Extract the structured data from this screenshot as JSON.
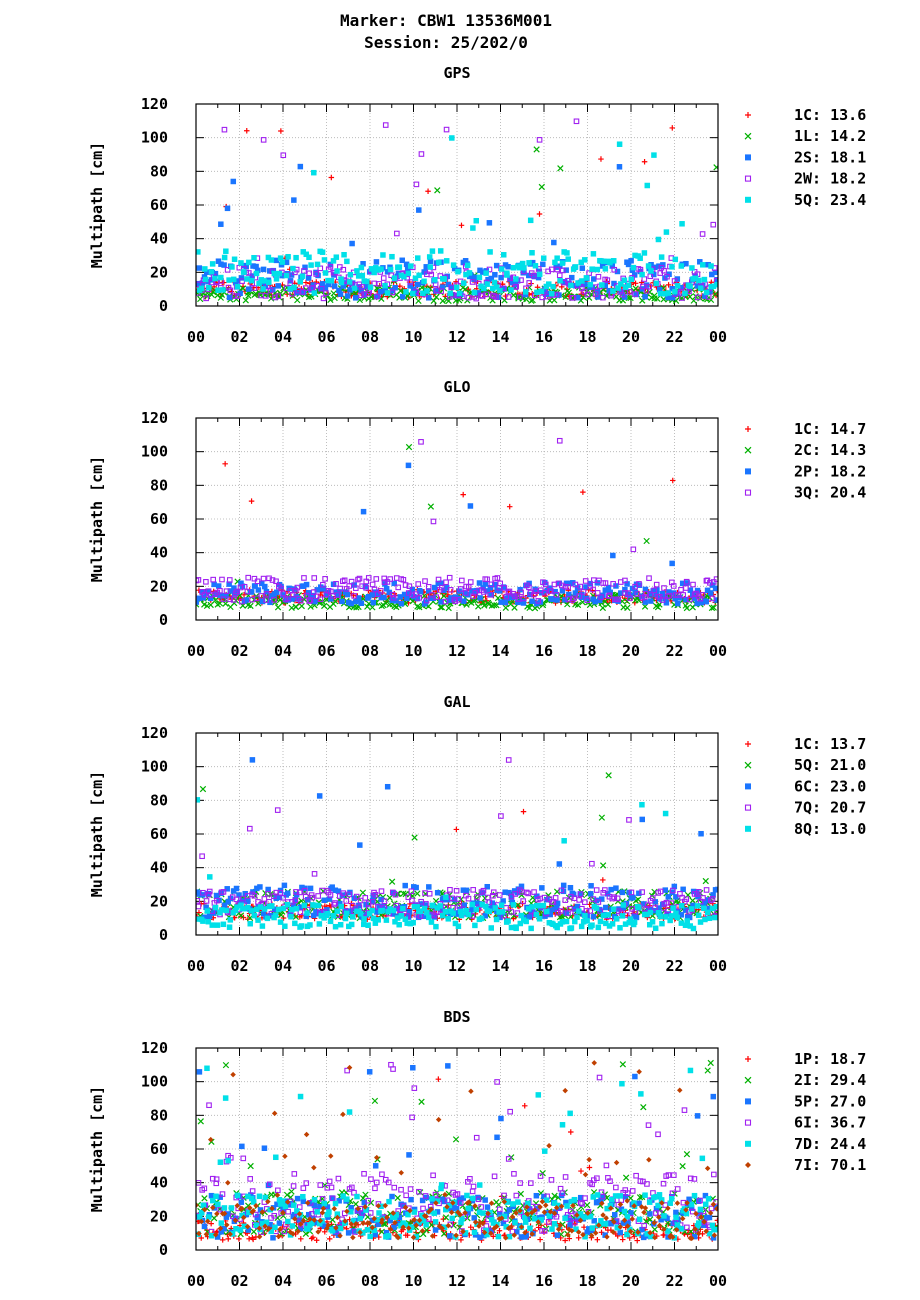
{
  "header": {
    "marker_line": "Marker: CBW1 13536M001",
    "session_line": "Session: 25/202/0"
  },
  "chart_data": [
    {
      "type": "scatter",
      "title": "GPS",
      "ylabel": "Multipath [cm]",
      "xlabel": "",
      "ylim": [
        0,
        120
      ],
      "xlim": [
        0,
        24
      ],
      "y_ticks": [
        "0",
        "20",
        "40",
        "60",
        "80",
        "100",
        "120"
      ],
      "x_ticks": [
        "00",
        "02",
        "04",
        "06",
        "08",
        "10",
        "12",
        "14",
        "16",
        "18",
        "20",
        "22",
        "00"
      ],
      "grid": true,
      "legend_position": "right",
      "series": [
        {
          "name": "1C",
          "legend_value": "13.6",
          "color": "#ff0000",
          "marker": "plus",
          "base": 10,
          "spread": 6,
          "spike_rate": 0.025
        },
        {
          "name": "1L",
          "legend_value": "14.2",
          "color": "#00b000",
          "marker": "cross",
          "base": 7,
          "spread": 5,
          "spike_rate": 0.03
        },
        {
          "name": "2S",
          "legend_value": "18.1",
          "color": "#1a75ff",
          "marker": "square",
          "base": 16,
          "spread": 14,
          "spike_rate": 0.04
        },
        {
          "name": "2W",
          "legend_value": "18.2",
          "color": "#a020f0",
          "marker": "open-square",
          "base": 14,
          "spread": 12,
          "spike_rate": 0.04
        },
        {
          "name": "5Q",
          "legend_value": "23.4",
          "color": "#00e0e8",
          "marker": "square",
          "base": 20,
          "spread": 16,
          "spike_rate": 0.05
        }
      ]
    },
    {
      "type": "scatter",
      "title": "GLO",
      "ylabel": "Multipath [cm]",
      "xlabel": "",
      "ylim": [
        0,
        120
      ],
      "xlim": [
        0,
        24
      ],
      "y_ticks": [
        "0",
        "20",
        "40",
        "60",
        "80",
        "100",
        "120"
      ],
      "x_ticks": [
        "00",
        "02",
        "04",
        "06",
        "08",
        "10",
        "12",
        "14",
        "16",
        "18",
        "20",
        "22",
        "00"
      ],
      "grid": true,
      "legend_position": "right",
      "series": [
        {
          "name": "1C",
          "legend_value": "14.7",
          "color": "#ff0000",
          "marker": "plus",
          "base": 14,
          "spread": 5,
          "spike_rate": 0.02
        },
        {
          "name": "2C",
          "legend_value": "14.3",
          "color": "#00b000",
          "marker": "cross",
          "base": 11,
          "spread": 5,
          "spike_rate": 0.02
        },
        {
          "name": "2P",
          "legend_value": "18.2",
          "color": "#1a75ff",
          "marker": "square",
          "base": 16,
          "spread": 8,
          "spike_rate": 0.03
        },
        {
          "name": "3Q",
          "legend_value": "20.4",
          "color": "#a020f0",
          "marker": "open-square",
          "base": 18,
          "spread": 9,
          "spike_rate": 0.03
        }
      ]
    },
    {
      "type": "scatter",
      "title": "GAL",
      "ylabel": "Multipath [cm]",
      "xlabel": "",
      "ylim": [
        0,
        120
      ],
      "xlim": [
        0,
        24
      ],
      "y_ticks": [
        "0",
        "20",
        "40",
        "60",
        "80",
        "100",
        "120"
      ],
      "x_ticks": [
        "00",
        "02",
        "04",
        "06",
        "08",
        "10",
        "12",
        "14",
        "16",
        "18",
        "20",
        "22",
        "00"
      ],
      "grid": true,
      "legend_position": "right",
      "series": [
        {
          "name": "1C",
          "legend_value": "13.7",
          "color": "#ff0000",
          "marker": "plus",
          "base": 14,
          "spread": 6,
          "spike_rate": 0.02
        },
        {
          "name": "5Q",
          "legend_value": "21.0",
          "color": "#00b000",
          "marker": "cross",
          "base": 18,
          "spread": 10,
          "spike_rate": 0.03
        },
        {
          "name": "6C",
          "legend_value": "23.0",
          "color": "#1a75ff",
          "marker": "square",
          "base": 20,
          "spread": 12,
          "spike_rate": 0.04
        },
        {
          "name": "7Q",
          "legend_value": "20.7",
          "color": "#a020f0",
          "marker": "open-square",
          "base": 19,
          "spread": 10,
          "spike_rate": 0.04
        },
        {
          "name": "8Q",
          "legend_value": "13.0",
          "color": "#00e0e8",
          "marker": "square",
          "base": 11,
          "spread": 9,
          "spike_rate": 0.03
        }
      ]
    },
    {
      "type": "scatter",
      "title": "BDS",
      "ylabel": "Multipath [cm]",
      "xlabel": "",
      "ylim": [
        0,
        120
      ],
      "xlim": [
        0,
        24
      ],
      "y_ticks": [
        "0",
        "20",
        "40",
        "60",
        "80",
        "100",
        "120"
      ],
      "x_ticks": [
        "00",
        "02",
        "04",
        "06",
        "08",
        "10",
        "12",
        "14",
        "16",
        "18",
        "20",
        "22",
        "00"
      ],
      "grid": true,
      "legend_position": "right",
      "series": [
        {
          "name": "1P",
          "legend_value": "18.7",
          "color": "#ff0000",
          "marker": "plus",
          "base": 12,
          "spread": 8,
          "spike_rate": 0.03
        },
        {
          "name": "2I",
          "legend_value": "29.4",
          "color": "#00b000",
          "marker": "cross",
          "base": 22,
          "spread": 16,
          "spike_rate": 0.07
        },
        {
          "name": "5P",
          "legend_value": "27.0",
          "color": "#1a75ff",
          "marker": "square",
          "base": 20,
          "spread": 16,
          "spike_rate": 0.06
        },
        {
          "name": "6I",
          "legend_value": "36.7",
          "color": "#a020f0",
          "marker": "open-square",
          "base": 28,
          "spread": 22,
          "spike_rate": 0.09
        },
        {
          "name": "7D",
          "legend_value": "24.4",
          "color": "#00e0e8",
          "marker": "square",
          "base": 20,
          "spread": 16,
          "spike_rate": 0.07
        },
        {
          "name": "7I",
          "legend_value": "70.1",
          "color": "#c04000",
          "marker": "diamond",
          "base": 18,
          "spread": 14,
          "spike_rate": 0.12
        }
      ]
    }
  ]
}
